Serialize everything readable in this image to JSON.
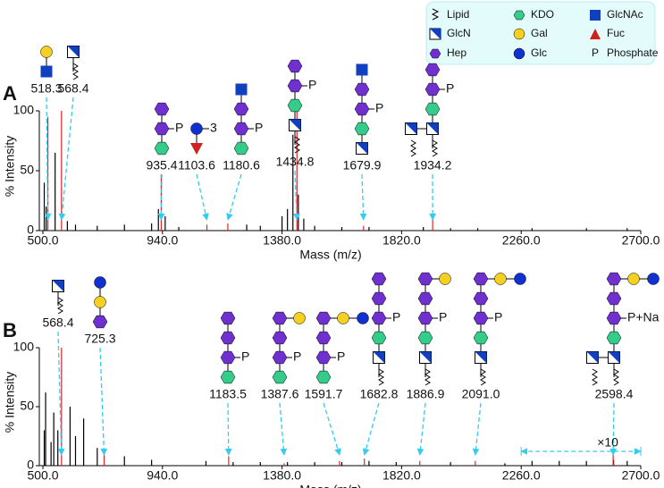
{
  "legend": {
    "entries": [
      "Lipid",
      "GlcN",
      "Hep",
      "KDO",
      "Gal",
      "Glc",
      "GlcNAc",
      "Fuc",
      "Phosphate"
    ],
    "phosphate_symbol": "P"
  },
  "chart_data": [
    {
      "type": "spectrum",
      "panel": "A",
      "xlabel": "Mass (m/z)",
      "ylabel": "% Intensity",
      "xlim": [
        500,
        2700
      ],
      "xticks": [
        {
          "value": 500,
          "label": "500.0"
        },
        {
          "value": 940,
          "label": "940.0"
        },
        {
          "value": 1380,
          "label": "1380.0"
        },
        {
          "value": 1820,
          "label": "1820.0"
        },
        {
          "value": 2260,
          "label": "2260.0"
        },
        {
          "value": 2700,
          "label": "2700.0"
        }
      ],
      "ylim": [
        0,
        100
      ],
      "yticks": [
        0,
        50,
        100
      ],
      "series": [
        {
          "color": "#000000",
          "x": [
            505,
            512,
            545,
            590,
            620,
            700,
            800,
            900,
            925,
            950,
            1000,
            1250,
            1300,
            1380,
            1400,
            1420,
            1440,
            1460,
            1500,
            1600,
            1700,
            1900,
            2000,
            2100,
            2300,
            2500,
            2650
          ],
          "values": [
            40,
            20,
            65,
            8,
            5,
            4,
            5,
            6,
            18,
            12,
            3,
            5,
            4,
            12,
            18,
            80,
            30,
            10,
            4,
            3,
            3,
            3,
            2,
            2,
            2,
            2,
            2
          ]
        },
        {
          "color": "#e8202a",
          "x": [
            518.3,
            568.4,
            935.4,
            1103.6,
            1180.6,
            1434.8,
            1679.9,
            1934.2
          ],
          "values": [
            95,
            100,
            47,
            5,
            6,
            100,
            4,
            12
          ]
        }
      ],
      "annotations": [
        {
          "x": 518.3,
          "mods": []
        },
        {
          "x": 568.4,
          "mods": []
        },
        {
          "x": 935.4,
          "mods": [
            "P"
          ]
        },
        {
          "x": 1103.6,
          "mods": [
            "3"
          ]
        },
        {
          "x": 1180.6,
          "mods": [
            "P"
          ]
        },
        {
          "x": 1434.8,
          "mods": [
            "P"
          ]
        },
        {
          "x": 1679.9,
          "mods": [
            "P"
          ]
        },
        {
          "x": 1934.2,
          "mods": [
            "P"
          ]
        }
      ]
    },
    {
      "type": "spectrum",
      "panel": "B",
      "xlabel": "Mass (m/z)",
      "ylabel": "% Intensity",
      "xlim": [
        500,
        2700
      ],
      "xticks": [
        {
          "value": 500,
          "label": "500.0"
        },
        {
          "value": 940,
          "label": "940.0"
        },
        {
          "value": 1380,
          "label": "1380.0"
        },
        {
          "value": 1820,
          "label": "1820.0"
        },
        {
          "value": 2260,
          "label": "2260.0"
        },
        {
          "value": 2700,
          "label": "2700.0"
        }
      ],
      "ylim": [
        0,
        100
      ],
      "yticks": [
        0,
        50,
        100
      ],
      "series": [
        {
          "color": "#000000",
          "x": [
            505,
            510,
            530,
            540,
            555,
            600,
            620,
            650,
            700,
            800,
            900,
            1100,
            1200,
            1300,
            1400,
            1500,
            1600,
            1700,
            1800,
            2000,
            2200,
            2300,
            2400,
            2500,
            2600,
            2650
          ],
          "values": [
            30,
            62,
            20,
            45,
            30,
            50,
            25,
            40,
            15,
            8,
            5,
            4,
            3,
            3,
            3,
            3,
            3,
            4,
            3,
            3,
            2,
            4,
            4,
            4,
            5,
            4
          ]
        },
        {
          "color": "#e8202a",
          "x": [
            568.4,
            725.3,
            1183.5,
            1387.6,
            1591.7,
            1682.8,
            1886.9,
            2091,
            2598.4
          ],
          "values": [
            100,
            12,
            8,
            2,
            4,
            6,
            4,
            4,
            10
          ]
        }
      ],
      "annotations": [
        {
          "x": 568.4,
          "mods": []
        },
        {
          "x": 725.3,
          "mods": []
        },
        {
          "x": 1183.5,
          "mods": [
            "P"
          ]
        },
        {
          "x": 1387.6,
          "mods": [
            "P"
          ]
        },
        {
          "x": 1591.7,
          "mods": [
            "P"
          ]
        },
        {
          "x": 1682.8,
          "mods": [
            "P"
          ]
        },
        {
          "x": 1886.9,
          "mods": [
            "P"
          ]
        },
        {
          "x": 2091,
          "label": "2091.0",
          "mods": [
            "P"
          ]
        },
        {
          "x": 2598.4,
          "mods": [
            "P+Na"
          ]
        }
      ],
      "magnification": {
        "label": "×10",
        "range": [
          2260,
          2700
        ]
      }
    }
  ]
}
